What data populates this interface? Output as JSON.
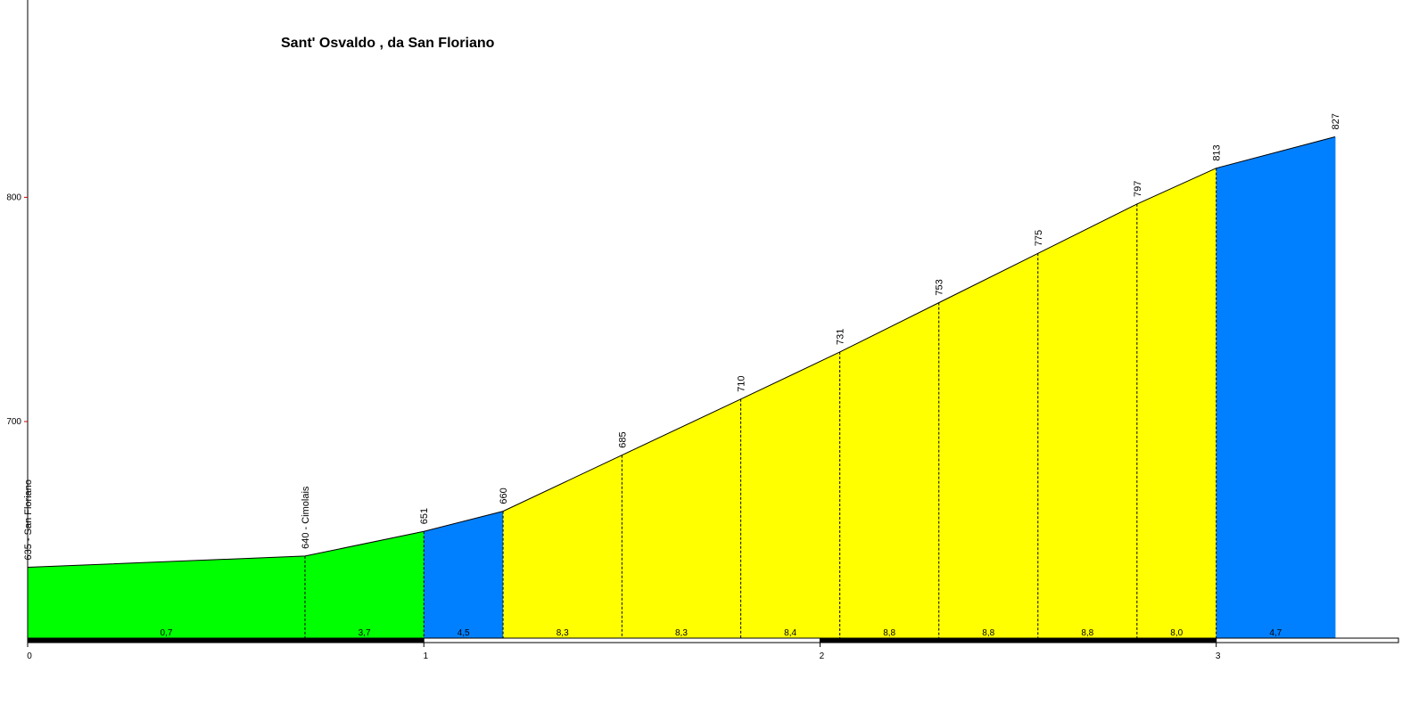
{
  "chart_data": {
    "type": "elevation-profile",
    "title": "Sant' Osvaldo , da San Floriano",
    "x": [
      0,
      0.7,
      1.0,
      1.2,
      1.5,
      1.8,
      2.05,
      2.3,
      2.55,
      2.8,
      3.0,
      3.3
    ],
    "values": [
      635,
      640,
      651,
      660,
      685,
      710,
      731,
      753,
      775,
      797,
      813,
      827
    ],
    "value_labels": [
      "635 - San Floriano",
      "640 - Cimolais",
      "651",
      "660",
      "685",
      "710",
      "731",
      "753",
      "775",
      "797",
      "813",
      "827"
    ],
    "segments": {
      "values": [
        0.7,
        3.7,
        4.5,
        8.3,
        8.3,
        8.4,
        8.8,
        8.8,
        8.8,
        8.0,
        4.7
      ],
      "value_labels": [
        "0,7",
        "3,7",
        "4,5",
        "8,3",
        "8,3",
        "8,4",
        "8,8",
        "8,8",
        "8,8",
        "8,0",
        "4,7"
      ],
      "colors": [
        "#00ff00",
        "#00ff00",
        "#0080ff",
        "#ffff00",
        "#ffff00",
        "#ffff00",
        "#ffff00",
        "#ffff00",
        "#ffff00",
        "#ffff00",
        "#0080ff"
      ]
    },
    "line_color": "#000000",
    "xlim": [
      0,
      3.46
    ],
    "ylim": [
      603,
      888
    ],
    "xticks": [
      0,
      1,
      2,
      3
    ],
    "yticks": [
      700,
      800
    ]
  }
}
